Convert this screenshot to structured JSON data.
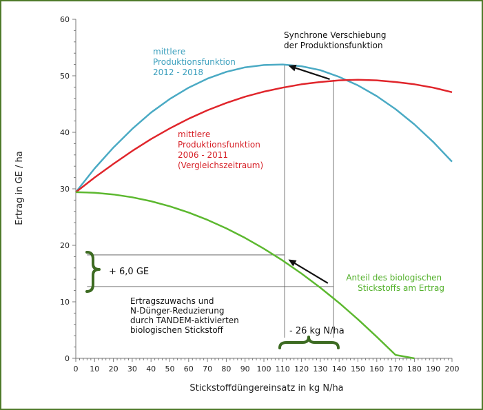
{
  "chart_data": {
    "type": "line",
    "x_label": "Stickstoffdüngereinsatz in kg N/ha",
    "y_label": "Ertrag in GE / ha",
    "x_ticks": [
      0,
      10,
      20,
      30,
      40,
      50,
      60,
      70,
      80,
      90,
      100,
      110,
      120,
      130,
      140,
      150,
      160,
      170,
      180,
      190,
      200
    ],
    "y_ticks": [
      0,
      10,
      20,
      30,
      40,
      50,
      60
    ],
    "xlim": [
      0,
      200
    ],
    "ylim": [
      0,
      60
    ],
    "grid": false,
    "series": [
      {
        "name": "mittlere Produktionsfunktion 2012 - 2018",
        "color": "#4aaac4",
        "x": [
          0,
          10,
          20,
          30,
          40,
          50,
          60,
          70,
          80,
          90,
          100,
          110,
          120,
          130,
          140,
          150,
          160,
          170,
          180,
          190,
          200
        ],
        "y": [
          29.4,
          33.6,
          37.3,
          40.6,
          43.5,
          45.9,
          47.9,
          49.5,
          50.7,
          51.5,
          51.9,
          52.0,
          51.7,
          51.0,
          49.8,
          48.3,
          46.4,
          44.1,
          41.4,
          38.3,
          34.8
        ]
      },
      {
        "name": "mittlere Produktionsfunktion 2006 - 2011 (Vergleichszeitraum)",
        "color": "#e0252b",
        "x": [
          0,
          10,
          20,
          30,
          40,
          50,
          60,
          70,
          80,
          90,
          100,
          110,
          120,
          130,
          140,
          150,
          160,
          170,
          180,
          190,
          200
        ],
        "y": [
          29.4,
          32.0,
          34.4,
          36.7,
          38.8,
          40.7,
          42.4,
          43.9,
          45.2,
          46.3,
          47.2,
          47.9,
          48.5,
          48.9,
          49.2,
          49.3,
          49.2,
          48.9,
          48.5,
          47.9,
          47.1
        ]
      },
      {
        "name": "Anteil des biologischen Stickstoffs am Ertrag",
        "color": "#5cb82f",
        "x": [
          0,
          10,
          20,
          30,
          40,
          50,
          60,
          70,
          80,
          90,
          100,
          110,
          120,
          130,
          140,
          150,
          160,
          170,
          180
        ],
        "y": [
          29.4,
          29.3,
          29.0,
          28.5,
          27.8,
          26.9,
          25.8,
          24.5,
          23.0,
          21.3,
          19.4,
          17.3,
          15.0,
          12.5,
          9.8,
          6.9,
          3.8,
          0.6,
          0.0
        ]
      }
    ],
    "annotations": {
      "shift_title": [
        "Synchrone Verschiebung",
        "der Produktionsfunktion"
      ],
      "blue_label": [
        "mittlere",
        "Produktionsfunktion",
        "2012 - 2018"
      ],
      "red_label": [
        "mittlere",
        "Produktionsfunktion",
        "2006 - 2011",
        "(Vergleichszeitraum)"
      ],
      "green_label": [
        "Anteil des biologischen",
        "Stickstoffs am Ertrag"
      ],
      "gain_label": "+ 6,0 GE",
      "reduction_label": "- 26 kg N/ha",
      "explanation": [
        "Ertragszuwachs und",
        "N-Dünger-Reduzierung",
        "durch TANDEM-aktivierten",
        "biologischen Stickstoff"
      ]
    }
  }
}
